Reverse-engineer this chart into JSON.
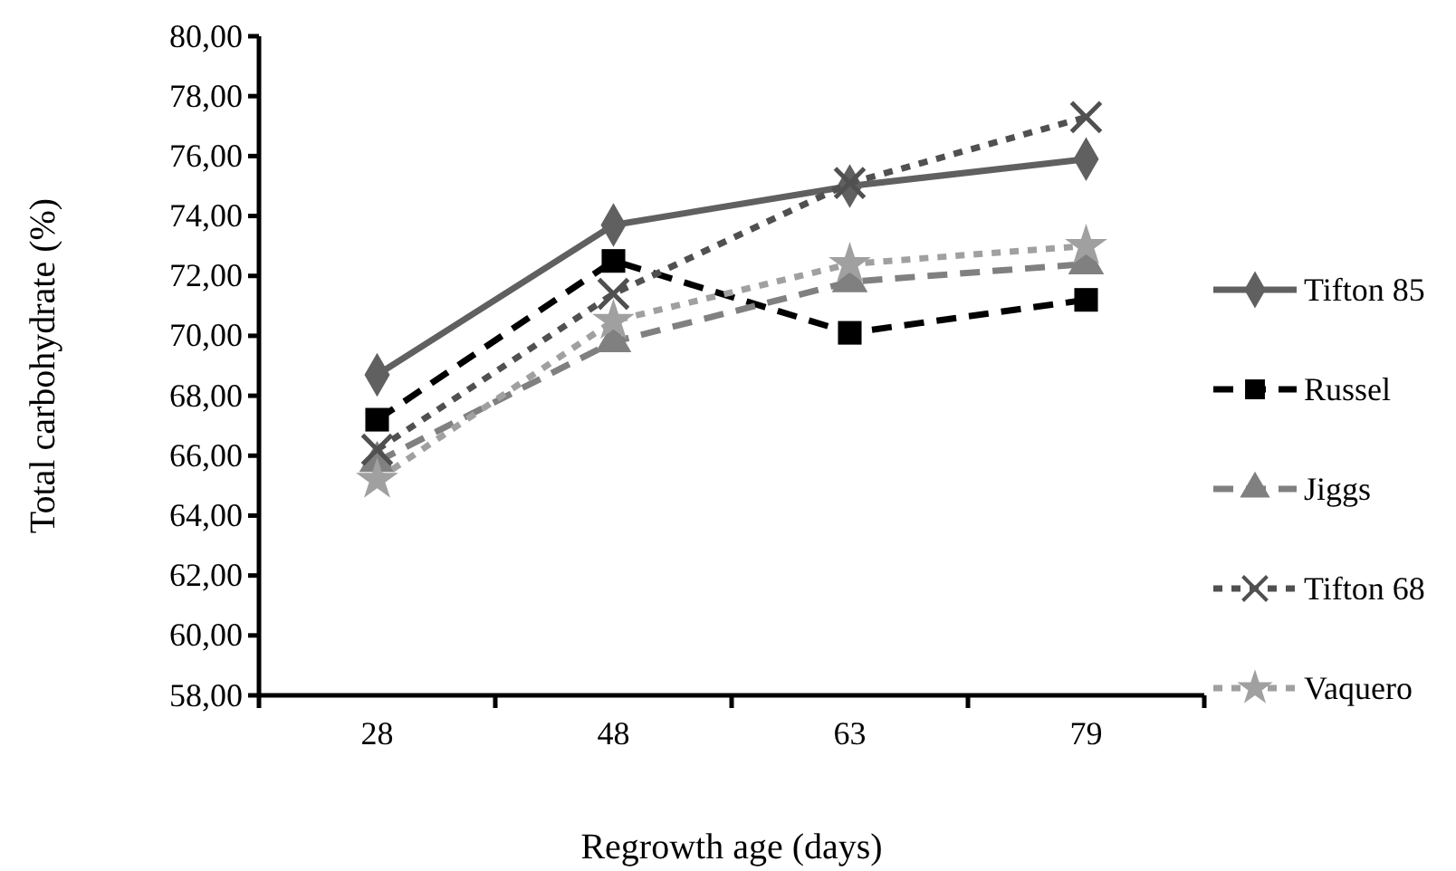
{
  "chart_data": {
    "type": "line",
    "xlabel": "Regrowth age (days)",
    "ylabel": "Total carbohydrate (%)",
    "categories": [
      "28",
      "48",
      "63",
      "79"
    ],
    "series": [
      {
        "name": "Tifton 85",
        "color": "#606060",
        "marker": "diamond",
        "line_style": "solid",
        "values": [
          68.7,
          73.7,
          75.0,
          75.9
        ]
      },
      {
        "name": "Russel",
        "color": "#000000",
        "marker": "square",
        "line_style": "dashed",
        "values": [
          67.2,
          72.5,
          70.1,
          71.2
        ]
      },
      {
        "name": "Jiggs",
        "color": "#808080",
        "marker": "triangle",
        "line_style": "dashed",
        "values": [
          65.8,
          69.8,
          71.8,
          72.4
        ]
      },
      {
        "name": "Tifton 68",
        "color": "#505050",
        "marker": "cross",
        "line_style": "dotted",
        "values": [
          66.2,
          71.4,
          75.1,
          77.3
        ]
      },
      {
        "name": "Vaquero",
        "color": "#a0a0a0",
        "marker": "star",
        "line_style": "dotted",
        "values": [
          65.2,
          70.5,
          72.4,
          73.0
        ]
      }
    ],
    "ylim": [
      58,
      80
    ],
    "yticks": [
      {
        "value": 58,
        "label": "58,00"
      },
      {
        "value": 60,
        "label": "60,00"
      },
      {
        "value": 62,
        "label": "62,00"
      },
      {
        "value": 64,
        "label": "64,00"
      },
      {
        "value": 66,
        "label": "66,00"
      },
      {
        "value": 68,
        "label": "68,00"
      },
      {
        "value": 70,
        "label": "70,00"
      },
      {
        "value": 72,
        "label": "72,00"
      },
      {
        "value": 74,
        "label": "74,00"
      },
      {
        "value": 76,
        "label": "76,00"
      },
      {
        "value": 78,
        "label": "78,00"
      },
      {
        "value": 80,
        "label": "80,00"
      }
    ],
    "grid": false,
    "legend": "right"
  }
}
